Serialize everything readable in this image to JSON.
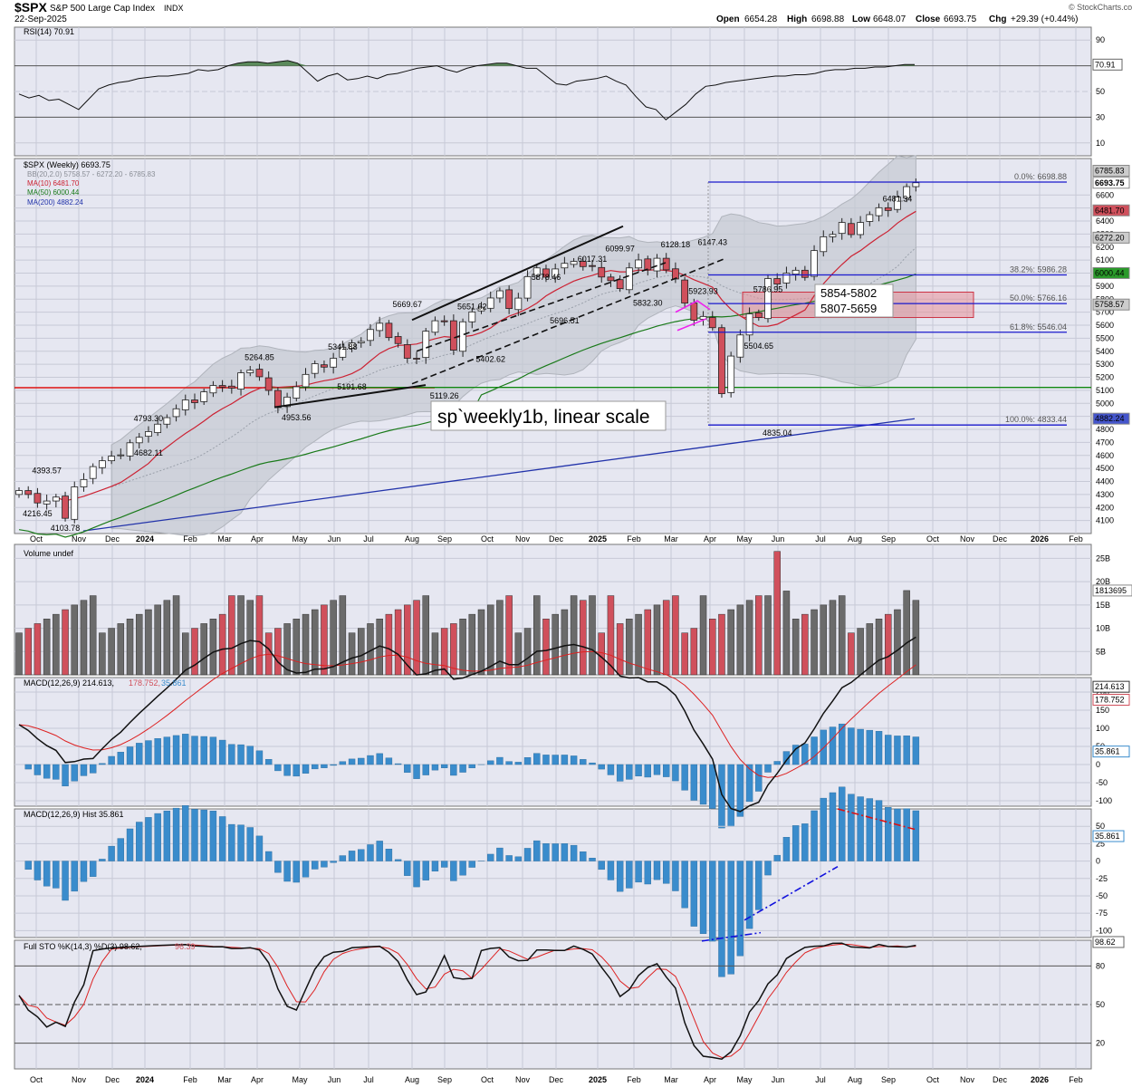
{
  "header": {
    "symbol": "$SPX",
    "name": "S&P 500 Large Cap Index",
    "exchange": "INDX",
    "date": "22-Sep-2025",
    "open_label": "Open",
    "open": "6654.28",
    "high_label": "High",
    "high": "6698.88",
    "low_label": "Low",
    "low": "6648.07",
    "close_label": "Close",
    "close": "6693.75",
    "chg_label": "Chg",
    "chg": "+29.39 (+0.44%)",
    "watermark": "© StockCharts.com"
  },
  "colors": {
    "up": "#ffffff",
    "down": "#d0505c",
    "vol_up": "#6b6b6b",
    "vol_down": "#d0505c",
    "ma10": "#cc2233",
    "ma50": "#1a7a1a",
    "ma200": "#2233aa",
    "bb": "#b8bcc4",
    "panel_bg": "#e6e7f1",
    "hist": "#3a8ccc",
    "fib": "#1a1acc"
  },
  "chart_data": [
    {
      "type": "line",
      "panel": "rsi",
      "legend": "RSI(14) 70.91",
      "last_value": "70.91",
      "ylim": [
        0,
        100
      ],
      "y_ticks": [
        "90",
        "70",
        "50",
        "30",
        "10"
      ],
      "guides": [
        70,
        50,
        30
      ],
      "values": [
        48,
        45,
        47,
        43,
        44,
        40,
        36,
        44,
        52,
        55,
        57,
        58,
        60,
        61,
        62,
        62,
        63,
        64,
        67,
        66,
        67,
        70,
        72,
        73,
        73,
        72,
        73,
        74,
        72,
        65,
        58,
        62,
        64,
        59,
        60,
        62,
        60,
        63,
        64,
        66,
        68,
        69,
        70,
        67,
        65,
        68,
        70,
        71,
        72,
        72,
        70,
        68,
        68,
        62,
        56,
        55,
        58,
        59,
        60,
        62,
        58,
        55,
        46,
        38,
        36,
        28,
        34,
        40,
        48,
        54,
        55,
        57,
        58,
        59,
        60,
        61,
        62,
        62,
        63,
        63,
        64,
        66,
        67,
        67,
        68,
        68,
        69,
        69,
        70,
        71,
        71
      ]
    },
    {
      "type": "candlestick",
      "panel": "price",
      "legend": "$SPX (Weekly) 6693.75",
      "legend_rows": [
        {
          "label": "BB(20,2.0) 5758.57 - 6272.20 - 6785.83",
          "color": "#8a8e96"
        },
        {
          "label": "MA(10) 6481.70",
          "color": "#cc2233"
        },
        {
          "label": "MA(50) 6000.44",
          "color": "#1a7a1a"
        },
        {
          "label": "MA(200) 4882.24",
          "color": "#2233aa"
        }
      ],
      "ylim": [
        4000,
        6880
      ],
      "y_ticks": [
        "6600",
        "6500",
        "6400",
        "6300",
        "6200",
        "6100",
        "6000",
        "5900",
        "5800",
        "5700",
        "5600",
        "5500",
        "5400",
        "5300",
        "5200",
        "5100",
        "5000",
        "4900",
        "4800",
        "4700",
        "4600",
        "4500",
        "4400",
        "4300",
        "4200",
        "4100"
      ],
      "right_labels": [
        {
          "value": 6785.83,
          "text": "6785.83",
          "color": "#cccccc",
          "fg": "#000"
        },
        {
          "value": 6693.75,
          "text": "6693.75",
          "color": "#ffffff",
          "fg": "#000"
        },
        {
          "value": 6481.7,
          "text": "6481.70",
          "color": "#d0505c",
          "fg": "#000"
        },
        {
          "value": 6272.2,
          "text": "6272.20",
          "color": "#cccccc",
          "fg": "#000"
        },
        {
          "value": 6000.44,
          "text": "6000.44",
          "color": "#2a9a2a",
          "fg": "#000"
        },
        {
          "value": 5758.57,
          "text": "5758.57",
          "color": "#cccccc",
          "fg": "#000"
        },
        {
          "value": 4882.24,
          "text": "4882.24",
          "color": "#4455cc",
          "fg": "#000"
        }
      ],
      "x_labels": [
        "Oct",
        "Nov",
        "Dec",
        "2024",
        "Feb",
        "Mar",
        "Apr",
        "May",
        "Jun",
        "Jul",
        "Aug",
        "Sep",
        "Oct",
        "Nov",
        "Dec",
        "2025",
        "Feb",
        "Mar",
        "Apr",
        "May",
        "Jun",
        "Jul",
        "Aug",
        "Sep",
        "Oct",
        "Nov",
        "Dec",
        "2026",
        "Feb"
      ],
      "x_bold": [
        "2024",
        "2025",
        "2026"
      ],
      "closes": [
        4330,
        4300,
        4235,
        4250,
        4280,
        4117,
        4358,
        4415,
        4514,
        4559,
        4594,
        4604,
        4697,
        4739,
        4783,
        4840,
        4890,
        4958,
        5026,
        5005,
        5088,
        5137,
        5124,
        5117,
        5234,
        5254,
        5204,
        5099,
        4967,
        5048,
        5127,
        5222,
        5304,
        5278,
        5346,
        5431,
        5464,
        5475,
        5567,
        5615,
        5505,
        5459,
        5346,
        5344,
        5554,
        5634,
        5626,
        5408,
        5626,
        5702,
        5738,
        5809,
        5864,
        5728,
        5808,
        5973,
        6040,
        5969,
        6032,
        6075,
        6090,
        6050,
        6051,
        5970,
        5942,
        5881,
        6040,
        6101,
        6025,
        6114,
        6025,
        5955,
        5770,
        5638,
        5667,
        5581,
        5074,
        5363,
        5525,
        5687,
        5659,
        5958,
        5916,
        6000,
        6022,
        5967,
        6173,
        6279,
        6297,
        6389,
        6296,
        6389,
        6449,
        6502,
        6481,
        6584,
        6664,
        6694
      ],
      "annotations": [
        {
          "text": "4393.57",
          "i": 3,
          "v": 4393,
          "pos": "above"
        },
        {
          "text": "4216.45",
          "i": 2,
          "v": 4216,
          "pos": "below"
        },
        {
          "text": "4103.78",
          "i": 5,
          "v": 4103,
          "pos": "below"
        },
        {
          "text": "4793.30",
          "i": 14,
          "v": 4793,
          "pos": "above"
        },
        {
          "text": "4682.11",
          "i": 14,
          "v": 4682,
          "pos": "below"
        },
        {
          "text": "5264.85",
          "i": 26,
          "v": 5264,
          "pos": "above"
        },
        {
          "text": "4953.56",
          "i": 30,
          "v": 4953,
          "pos": "below"
        },
        {
          "text": "5341.88",
          "i": 35,
          "v": 5341,
          "pos": "above"
        },
        {
          "text": "5191.68",
          "i": 36,
          "v": 5191,
          "pos": "below"
        },
        {
          "text": "5669.67",
          "i": 42,
          "v": 5669,
          "pos": "above"
        },
        {
          "text": "5119.26",
          "i": 46,
          "v": 5119,
          "pos": "below"
        },
        {
          "text": "5651.62",
          "i": 49,
          "v": 5651,
          "pos": "above"
        },
        {
          "text": "5402.62",
          "i": 51,
          "v": 5402,
          "pos": "below"
        },
        {
          "text": "5878.46",
          "i": 57,
          "v": 5878,
          "pos": "above"
        },
        {
          "text": "5696.51",
          "i": 59,
          "v": 5696,
          "pos": "below"
        },
        {
          "text": "6017.31",
          "i": 62,
          "v": 6017,
          "pos": "above"
        },
        {
          "text": "6099.97",
          "i": 65,
          "v": 6099,
          "pos": "above"
        },
        {
          "text": "5832.30",
          "i": 68,
          "v": 5832,
          "pos": "below"
        },
        {
          "text": "6128.18",
          "i": 71,
          "v": 6128,
          "pos": "above"
        },
        {
          "text": "6147.43",
          "i": 75,
          "v": 6147,
          "pos": "above"
        },
        {
          "text": "5923.93",
          "i": 74,
          "v": 5923,
          "pos": "below"
        },
        {
          "text": "5786.95",
          "i": 81,
          "v": 5786,
          "pos": "above"
        },
        {
          "text": "5504.65",
          "i": 80,
          "v": 5504,
          "pos": "below"
        },
        {
          "text": "4835.04",
          "i": 82,
          "v": 4835,
          "pos": "below"
        },
        {
          "text": "6481.34",
          "i": 95,
          "v": 6481,
          "pos": "above"
        }
      ],
      "fib_levels": [
        {
          "label": "0.0%: 6698.88",
          "value": 6698.88
        },
        {
          "label": "38.2%: 5986.28",
          "value": 5986.28
        },
        {
          "label": "50.0%: 5766.16",
          "value": 5766.16
        },
        {
          "label": "61.8%: 5546.04",
          "value": 5546.04
        },
        {
          "label": "100.0%: 4833.44",
          "value": 4833.44
        }
      ],
      "red_hline": 5120,
      "green_hline": 5122,
      "zone_labels": [
        "5854-5802",
        "5807-5659"
      ],
      "note": "sp`weekly1b, linear scale"
    },
    {
      "type": "bar",
      "panel": "volume",
      "legend": "Volume undef",
      "last_value": "1813695",
      "ylim": [
        0,
        28
      ],
      "y_ticks": [
        "25B",
        "20B",
        "15B",
        "10B",
        "5B"
      ]
    },
    {
      "type": "line",
      "panel": "macd",
      "legend": "MACD(12,26,9) 214.613, 178.752, 35.861",
      "legend_parts": [
        "MACD(12,26,9) 214.613,",
        "178.752,",
        "35.861"
      ],
      "ylim": [
        -115,
        240
      ],
      "y_ticks": [
        "200",
        "150",
        "100",
        "50",
        "0",
        "-50",
        "-100"
      ],
      "right_labels": [
        {
          "value": 214.613,
          "text": "214.613",
          "color": "#333333"
        },
        {
          "value": 178.752,
          "text": "178.752",
          "color": "#d0505c"
        },
        {
          "value": 35.861,
          "text": "35.861",
          "color": "#3a8ccc"
        }
      ]
    },
    {
      "type": "bar",
      "panel": "macd_hist",
      "legend": "MACD(12,26,9) Hist 35.861",
      "last_value": "35.861",
      "ylim": [
        -110,
        75
      ],
      "y_ticks": [
        "50",
        "25",
        "0",
        "-25",
        "-50",
        "-75",
        "-100"
      ]
    },
    {
      "type": "line",
      "panel": "stoch",
      "legend": "Full STO %K(14,3) %D(3) 98.62, 96.39",
      "legend_parts": [
        "Full STO %K(14,3) %D(3) 98.62,",
        "96.39"
      ],
      "last_value": "98.62",
      "ylim": [
        0,
        100
      ],
      "y_ticks": [
        "80",
        "50",
        "20"
      ]
    }
  ]
}
